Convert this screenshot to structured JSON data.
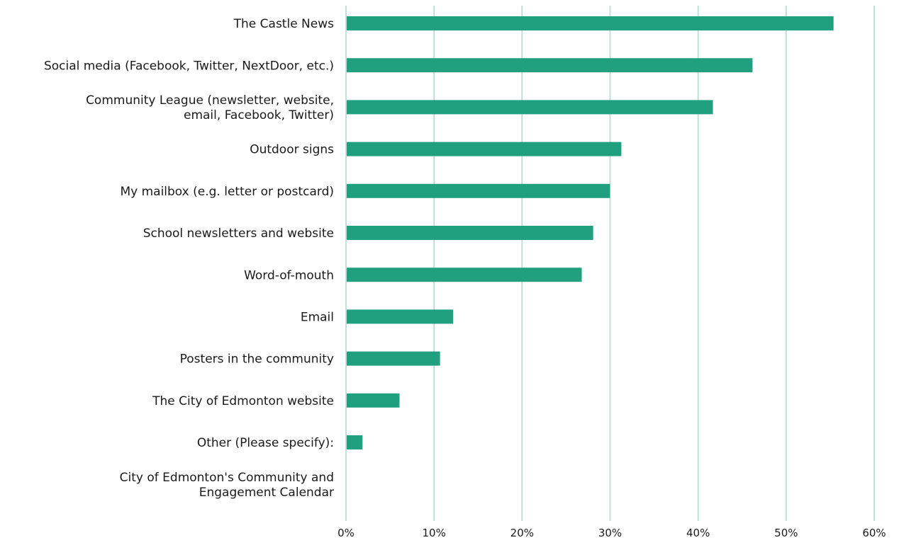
{
  "chart_data": {
    "type": "bar",
    "orientation": "horizontal",
    "title": "",
    "xlabel": "",
    "ylabel": "",
    "xlim": [
      0,
      60
    ],
    "x_ticks": [
      "0%",
      "10%",
      "20%",
      "30%",
      "40%",
      "50%",
      "60%"
    ],
    "grid": true,
    "legend": "none",
    "categories": [
      "The Castle News",
      "Social media (Facebook, Twitter, NextDoor, etc.)",
      "Community League (newsletter, website, email, Facebook, Twitter)",
      "Outdoor signs",
      "My mailbox (e.g. letter or postcard)",
      "School newsletters and website",
      "Word-of-mouth",
      "Email",
      "Posters in the community",
      "The City of Edmonton website",
      "Other (Please specify):",
      "City of Edmonton's Community and Engagement Calendar"
    ],
    "category_label_lines": [
      [
        "The Castle News"
      ],
      [
        "Social media (Facebook, Twitter, NextDoor, etc.)"
      ],
      [
        "Community League (newsletter, website,",
        "email, Facebook, Twitter)"
      ],
      [
        "Outdoor signs"
      ],
      [
        "My mailbox (e.g. letter or postcard)"
      ],
      [
        "School newsletters and website"
      ],
      [
        "Word-of-mouth"
      ],
      [
        "Email"
      ],
      [
        "Posters in the community"
      ],
      [
        "The City of Edmonton website"
      ],
      [
        "Other (Please specify):"
      ],
      [
        "City of Edmonton's Community and",
        "Engagement Calendar"
      ]
    ],
    "values": [
      55.3,
      46.1,
      41.6,
      31.2,
      29.9,
      28.0,
      26.7,
      12.1,
      10.6,
      6.0,
      1.8,
      0.0
    ],
    "colors": {
      "bar": "#20a07f",
      "grid": "#b5d9cf",
      "text": "#1a1a1a"
    }
  }
}
